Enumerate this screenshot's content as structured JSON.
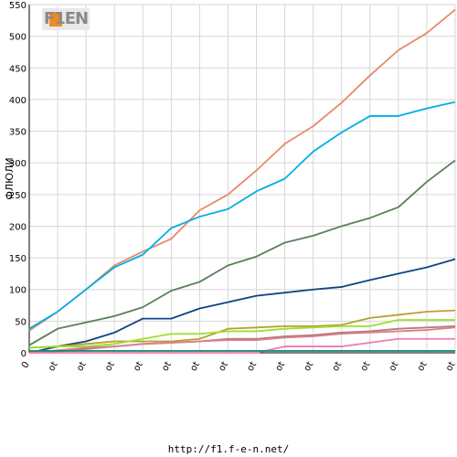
{
  "logo": {
    "text": "F1EN"
  },
  "footer": {
    "url": "http://f1.f-e-n.net/"
  },
  "chart_data": {
    "type": "line",
    "ylabel": "ФЛЮЛИ",
    "xlabel": "",
    "ylim": [
      0,
      550
    ],
    "yticks": [
      0,
      50,
      100,
      150,
      200,
      250,
      300,
      350,
      400,
      450,
      500,
      550
    ],
    "categories": [
      "0",
      "ot",
      "ot",
      "ot",
      "ot",
      "ot",
      "ot",
      "ot",
      "ot",
      "ot",
      "ot",
      "ot",
      "ot",
      "ot",
      "ot",
      "ot"
    ],
    "grid": true,
    "legend": "none",
    "series": [
      {
        "color": "#e8896a",
        "values": [
          35,
          65,
          100,
          138,
          160,
          180,
          225,
          250,
          288,
          330,
          358,
          395,
          438,
          478,
          505,
          542
        ]
      },
      {
        "color": "#00aee6",
        "values": [
          38,
          65,
          100,
          135,
          155,
          197,
          215,
          227,
          255,
          275,
          318,
          348,
          374,
          374,
          386,
          396
        ]
      },
      {
        "color": "#5a7f5a",
        "values": [
          12,
          38,
          48,
          58,
          72,
          98,
          112,
          138,
          152,
          174,
          185,
          200,
          213,
          230,
          270,
          304
        ]
      },
      {
        "color": "#0f4580",
        "values": [
          0,
          10,
          18,
          32,
          54,
          54,
          70,
          80,
          90,
          95,
          100,
          104,
          115,
          125,
          135,
          148
        ]
      },
      {
        "color": "#b8a02e",
        "values": [
          8,
          10,
          14,
          18,
          18,
          18,
          22,
          38,
          40,
          42,
          42,
          44,
          55,
          60,
          65,
          67
        ]
      },
      {
        "color": "#99e22a",
        "values": [
          8,
          10,
          10,
          14,
          22,
          30,
          30,
          34,
          34,
          38,
          40,
          42,
          42,
          52,
          52,
          52
        ]
      },
      {
        "color": "#b67a7a",
        "values": [
          0,
          2,
          6,
          10,
          14,
          16,
          18,
          22,
          22,
          26,
          28,
          32,
          34,
          38,
          40,
          42
        ]
      },
      {
        "color": "#d9808c",
        "values": [
          0,
          4,
          8,
          10,
          14,
          16,
          18,
          20,
          20,
          24,
          26,
          30,
          32,
          34,
          36,
          40
        ]
      },
      {
        "color": "#f07aac",
        "values": [
          0,
          0,
          0,
          0,
          0,
          0,
          0,
          0,
          0,
          10,
          10,
          10,
          16,
          22,
          22,
          22
        ]
      },
      {
        "color": "#1f8a7a",
        "values": [
          3,
          3,
          3,
          3,
          3,
          3,
          3,
          3,
          3,
          3,
          3,
          3,
          3,
          3,
          3,
          3
        ]
      }
    ]
  }
}
